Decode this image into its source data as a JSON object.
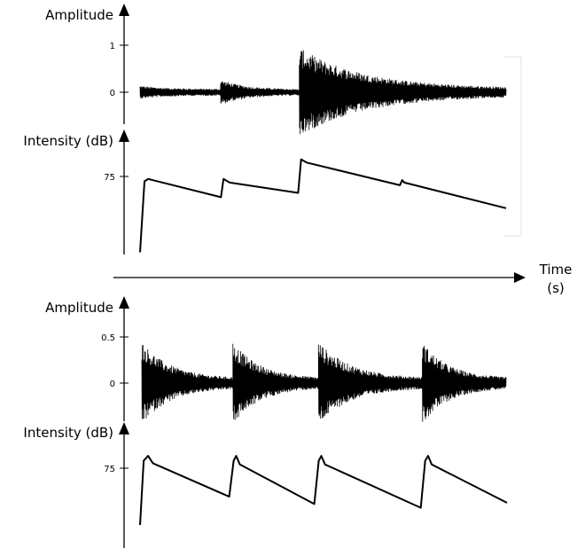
{
  "time_axis": {
    "label_line1": "Time",
    "label_line2": "(s)"
  },
  "chart_data": [
    {
      "type": "line",
      "group": "top",
      "ylabel": "Amplitude",
      "yticks": [
        {
          "value": 1,
          "label": "1"
        },
        {
          "value": 0,
          "label": "0"
        }
      ],
      "ylim": [
        -0.7,
        1.0
      ],
      "xlim": [
        0,
        1
      ],
      "envelope": [
        {
          "x": [
            0.0,
            0.22
          ],
          "peak": 0.14,
          "end": 0.07
        },
        {
          "x": [
            0.22,
            0.435
          ],
          "peak": 0.27,
          "end": 0.06
        },
        {
          "x": [
            0.435,
            1.0
          ],
          "peak": 0.95,
          "end": 0.08
        }
      ]
    },
    {
      "type": "line",
      "group": "top",
      "ylabel": "Intensity (dB)",
      "yticks": [
        {
          "value": 75,
          "label": "75"
        }
      ],
      "ylim": [
        42,
        91
      ],
      "xlim": [
        0,
        1
      ],
      "x": [
        0.0,
        0.012,
        0.022,
        0.221,
        0.228,
        0.245,
        0.432,
        0.44,
        0.455,
        0.71,
        0.716,
        0.722,
        1.0
      ],
      "y": [
        44,
        73,
        74,
        66.5,
        74,
        72.5,
        68.3,
        82,
        80.7,
        71.4,
        73.5,
        72.5,
        62
      ]
    },
    {
      "type": "line",
      "group": "bottom",
      "ylabel": "Amplitude",
      "yticks": [
        {
          "value": 0.5,
          "label": "0.5"
        },
        {
          "value": 0,
          "label": "0"
        }
      ],
      "ylim": [
        -0.4,
        0.6
      ],
      "xlim": [
        0,
        1
      ],
      "envelope": [
        {
          "x": [
            0.0,
            0.25
          ],
          "peak": 0.45,
          "end": 0.05
        },
        {
          "x": [
            0.25,
            0.485
          ],
          "peak": 0.45,
          "end": 0.05
        },
        {
          "x": [
            0.485,
            0.77
          ],
          "peak": 0.45,
          "end": 0.05
        },
        {
          "x": [
            0.77,
            1.0
          ],
          "peak": 0.45,
          "end": 0.05
        }
      ]
    },
    {
      "type": "line",
      "group": "bottom",
      "ylabel": "Intensity (dB)",
      "yticks": [
        {
          "value": 75,
          "label": "75"
        }
      ],
      "ylim": [
        42,
        91
      ],
      "xlim": [
        0,
        1
      ],
      "x": [
        0.0,
        0.01,
        0.022,
        0.035,
        0.243,
        0.255,
        0.262,
        0.272,
        0.475,
        0.487,
        0.494,
        0.504,
        0.765,
        0.777,
        0.785,
        0.795,
        1.0
      ],
      "y": [
        52,
        78,
        80,
        77,
        63.5,
        78,
        80,
        76.5,
        60.5,
        78,
        80,
        76.5,
        59,
        78,
        80,
        76.5,
        61
      ]
    }
  ]
}
